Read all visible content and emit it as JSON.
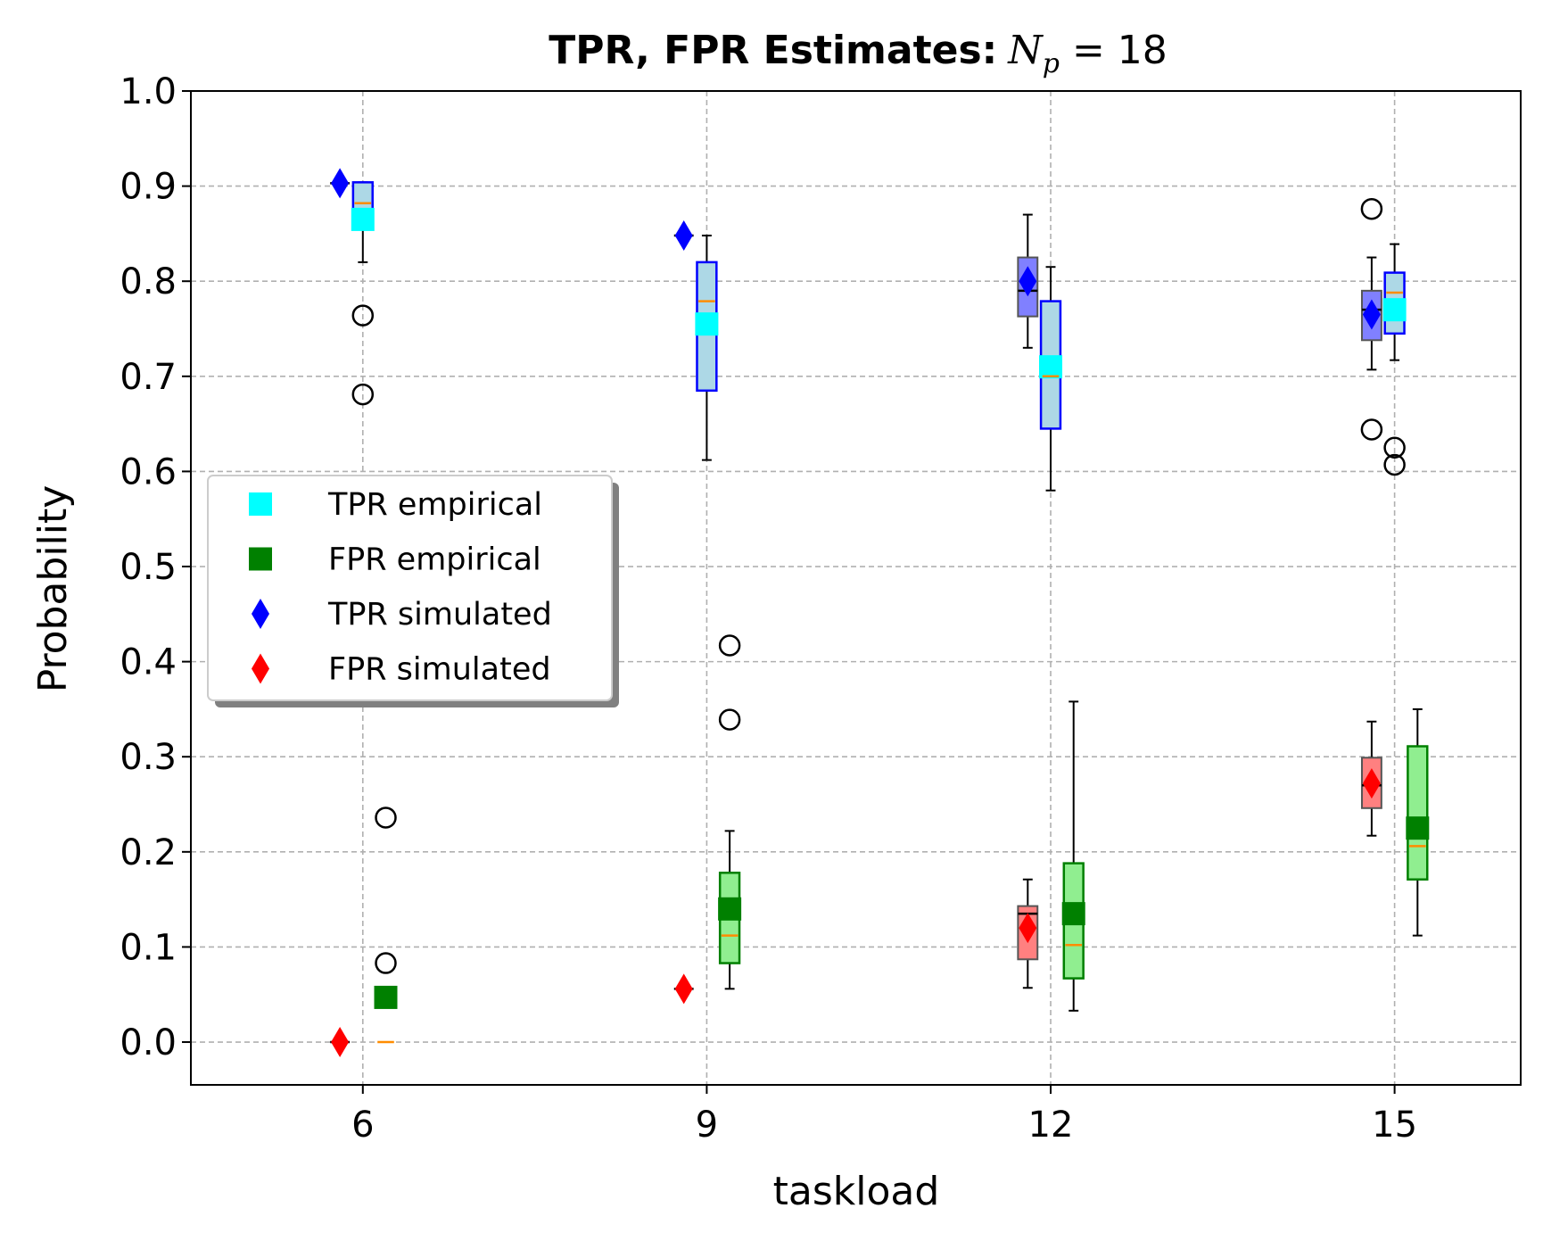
{
  "chart_data": {
    "type": "box",
    "title_bold": "TPR, FPR Estimates:",
    "title_var": "N",
    "title_sub": "p",
    "title_eq": " = 18",
    "xlabel": "taskload",
    "ylabel": "Probability",
    "ylim": [
      -0.045,
      1.0
    ],
    "xlim": [
      4.5,
      16.1
    ],
    "grid": true,
    "x_ticks": [
      6,
      9,
      12,
      15
    ],
    "x_tick_labels": [
      "6",
      "9",
      "12",
      "15"
    ],
    "y_ticks": [
      0.0,
      0.1,
      0.2,
      0.3,
      0.4,
      0.5,
      0.6,
      0.7,
      0.8,
      0.9,
      1.0
    ],
    "y_tick_labels": [
      "0.0",
      "0.1",
      "0.2",
      "0.3",
      "0.4",
      "0.5",
      "0.6",
      "0.7",
      "0.8",
      "0.9",
      "1.0"
    ],
    "legend": {
      "location": "center-left",
      "entries": [
        {
          "label": "TPR empirical",
          "marker": "square",
          "color": "#00ffff"
        },
        {
          "label": "FPR empirical",
          "marker": "square",
          "color": "#008000"
        },
        {
          "label": "TPR simulated",
          "marker": "diamond",
          "color": "#0000ff"
        },
        {
          "label": "FPR simulated",
          "marker": "diamond",
          "color": "#ff0000"
        }
      ]
    },
    "series": [
      {
        "name": "TPR simulated",
        "style": "sim",
        "fill": "#8080ff",
        "marker_color": "#0000ff",
        "offset": -0.2,
        "boxes": [
          {
            "x": 6,
            "q1": 0.903,
            "median": 0.903,
            "q3": 0.903,
            "whislo": 0.903,
            "whishi": 0.903,
            "mean": 0.903,
            "fliers": []
          },
          {
            "x": 9,
            "q1": 0.848,
            "median": 0.848,
            "q3": 0.848,
            "whislo": 0.848,
            "whishi": 0.848,
            "mean": 0.848,
            "fliers": []
          },
          {
            "x": 12,
            "q1": 0.763,
            "median": 0.79,
            "q3": 0.825,
            "whislo": 0.73,
            "whishi": 0.87,
            "mean": 0.8,
            "fliers": []
          },
          {
            "x": 15,
            "q1": 0.738,
            "median": 0.77,
            "q3": 0.79,
            "whislo": 0.707,
            "whishi": 0.825,
            "mean": 0.765,
            "fliers": [
              0.876,
              0.644
            ]
          }
        ]
      },
      {
        "name": "TPR empirical",
        "style": "emp",
        "fill": "#add8e6",
        "edge": "#0000ff",
        "marker_color": "#00ffff",
        "offset": 0.0,
        "boxes": [
          {
            "x": 6,
            "q1": 0.862,
            "median": 0.882,
            "q3": 0.904,
            "whislo": 0.82,
            "whishi": 0.904,
            "mean": 0.865,
            "fliers": [
              0.764,
              0.681
            ]
          },
          {
            "x": 9,
            "q1": 0.685,
            "median": 0.779,
            "q3": 0.82,
            "whislo": 0.612,
            "whishi": 0.848,
            "mean": 0.755,
            "fliers": []
          },
          {
            "x": 12,
            "q1": 0.645,
            "median": 0.7,
            "q3": 0.779,
            "whislo": 0.58,
            "whishi": 0.815,
            "mean": 0.71,
            "fliers": []
          },
          {
            "x": 15,
            "q1": 0.745,
            "median": 0.788,
            "q3": 0.809,
            "whislo": 0.717,
            "whishi": 0.839,
            "mean": 0.77,
            "fliers": [
              0.625,
              0.607
            ]
          }
        ]
      },
      {
        "name": "FPR simulated",
        "style": "sim",
        "fill": "#ff8080",
        "marker_color": "#ff0000",
        "offset": -0.2,
        "boxes": [
          {
            "x": 6,
            "q1": 0.0,
            "median": 0.0,
            "q3": 0.0,
            "whislo": 0.0,
            "whishi": 0.0,
            "mean": 0.0,
            "fliers": []
          },
          {
            "x": 9,
            "q1": 0.056,
            "median": 0.056,
            "q3": 0.056,
            "whislo": 0.056,
            "whishi": 0.056,
            "mean": 0.056,
            "fliers": []
          },
          {
            "x": 12,
            "q1": 0.087,
            "median": 0.135,
            "q3": 0.143,
            "whislo": 0.057,
            "whishi": 0.171,
            "mean": 0.12,
            "fliers": []
          },
          {
            "x": 15,
            "q1": 0.246,
            "median": 0.27,
            "q3": 0.299,
            "whislo": 0.217,
            "whishi": 0.337,
            "mean": 0.272,
            "fliers": []
          }
        ]
      },
      {
        "name": "FPR empirical",
        "style": "emp",
        "fill": "#90ee90",
        "edge": "#008000",
        "marker_color": "#008000",
        "offset": 0.2,
        "boxes": [
          {
            "x": 6,
            "q1": 0.0,
            "median": 0.0,
            "q3": 0.0,
            "whislo": 0.0,
            "whishi": 0.0,
            "mean": 0.047,
            "fliers": [
              0.236,
              0.083
            ]
          },
          {
            "x": 9,
            "q1": 0.083,
            "median": 0.112,
            "q3": 0.178,
            "whislo": 0.056,
            "whishi": 0.222,
            "mean": 0.14,
            "fliers": [
              0.417,
              0.339
            ]
          },
          {
            "x": 12,
            "q1": 0.067,
            "median": 0.102,
            "q3": 0.188,
            "whislo": 0.033,
            "whishi": 0.358,
            "mean": 0.135,
            "fliers": []
          },
          {
            "x": 15,
            "q1": 0.171,
            "median": 0.206,
            "q3": 0.311,
            "whislo": 0.112,
            "whishi": 0.35,
            "mean": 0.225,
            "fliers": []
          }
        ]
      }
    ]
  }
}
